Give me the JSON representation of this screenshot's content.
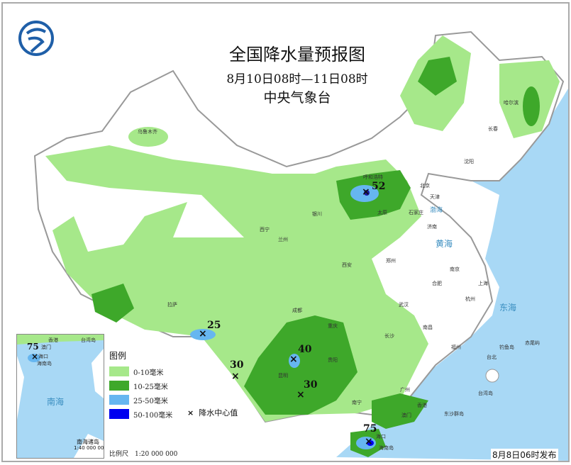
{
  "header": {
    "title": "全国降水量预报图",
    "period": "8月10日08时—11日08时",
    "organization": "中央气象台",
    "logo": "cma-logo"
  },
  "legend": {
    "title": "图例",
    "items": [
      {
        "label": "0-10毫米",
        "color": "#a6e88a"
      },
      {
        "label": "10-25毫米",
        "color": "#3ea82a"
      },
      {
        "label": "25-50毫米",
        "color": "#66b6f0"
      },
      {
        "label": "50-100毫米",
        "color": "#0000f0"
      }
    ],
    "center_marker": "×",
    "center_label": "降水中心值"
  },
  "scale": "比例尺　1:20 000 000",
  "issued": "8月8日06时发布",
  "precip_centers": [
    {
      "place": "内蒙古中部",
      "value": "52"
    },
    {
      "place": "西藏南部",
      "value": "25"
    },
    {
      "place": "云贵",
      "value": "40"
    },
    {
      "place": "云南西部",
      "value": "30"
    },
    {
      "place": "云南南部",
      "value": "30"
    },
    {
      "place": "海南",
      "value": "75"
    }
  ],
  "inset": {
    "title": "南海诸岛",
    "scale": "1:40 000 000",
    "sea": "南海",
    "value": "75",
    "labels": [
      "香港",
      "台湾岛",
      "澳门",
      "海口",
      "海南岛"
    ]
  },
  "seas": [
    "渤海",
    "黄海",
    "东海",
    "南海"
  ],
  "cities": [
    "乌鲁木齐",
    "哈尔滨",
    "长春",
    "沈阳",
    "北京",
    "天津",
    "呼和浩特",
    "石家庄",
    "太原",
    "济南",
    "银川",
    "西宁",
    "兰州",
    "西安",
    "郑州",
    "拉萨",
    "成都",
    "重庆",
    "武汉",
    "合肥",
    "南京",
    "上海",
    "杭州",
    "南昌",
    "长沙",
    "贵阳",
    "昆明",
    "南宁",
    "广州",
    "福州",
    "台北",
    "香港",
    "澳门",
    "海口",
    "海南岛",
    "钓鱼岛",
    "赤尾屿",
    "台湾岛",
    "东沙群岛"
  ],
  "colors": {
    "ocean": "#a8d8f5",
    "land": "#ffffff",
    "border": "#999999"
  }
}
